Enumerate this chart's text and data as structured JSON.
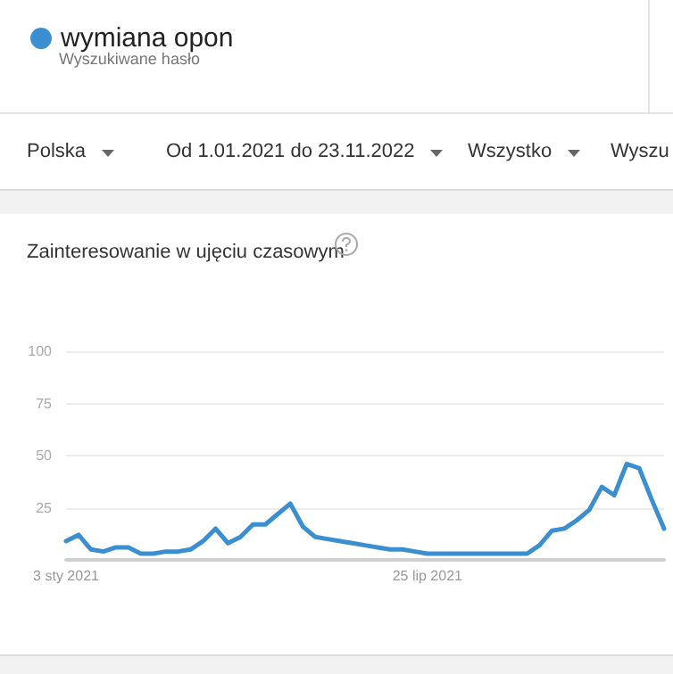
{
  "chart_data": {
    "type": "line",
    "title": "Zainteresowanie w ujęciu czasowym",
    "annotations": [
      "Wyszukiwane hasło",
      "Polska",
      "Od 1.01.2021 do 23.11.2022",
      "Wszystko",
      "Wyszu"
    ],
    "categories": [
      "3 sty 2021",
      null,
      null,
      null,
      null,
      null,
      null,
      null,
      null,
      null,
      null,
      null,
      null,
      null,
      null,
      null,
      null,
      null,
      null,
      null,
      null,
      null,
      null,
      null,
      null,
      null,
      null,
      null,
      null,
      "25 lip 2021",
      null,
      null,
      null,
      null,
      null,
      null,
      null,
      null,
      null,
      null,
      null,
      null,
      null,
      null,
      null,
      null,
      null,
      null,
      null
    ],
    "series": [
      {
        "name": "wymiana opon",
        "color": "#3b8fd0",
        "values": [
          9,
          12,
          5,
          4,
          6,
          6,
          3,
          3,
          4,
          4,
          5,
          9,
          15,
          8,
          11,
          17,
          17,
          22,
          27,
          16,
          11,
          10,
          9,
          8,
          7,
          6,
          5,
          5,
          4,
          3,
          3,
          3,
          3,
          3,
          3,
          3,
          3,
          3,
          7,
          14,
          15,
          19,
          24,
          35,
          31,
          46,
          44,
          29,
          15
        ]
      }
    ],
    "ylim": [
      0,
      100
    ],
    "yticks": [
      25,
      50,
      75,
      100
    ],
    "grid": "y",
    "legend": "top left",
    "marker": "none",
    "line_style": "solid"
  }
}
